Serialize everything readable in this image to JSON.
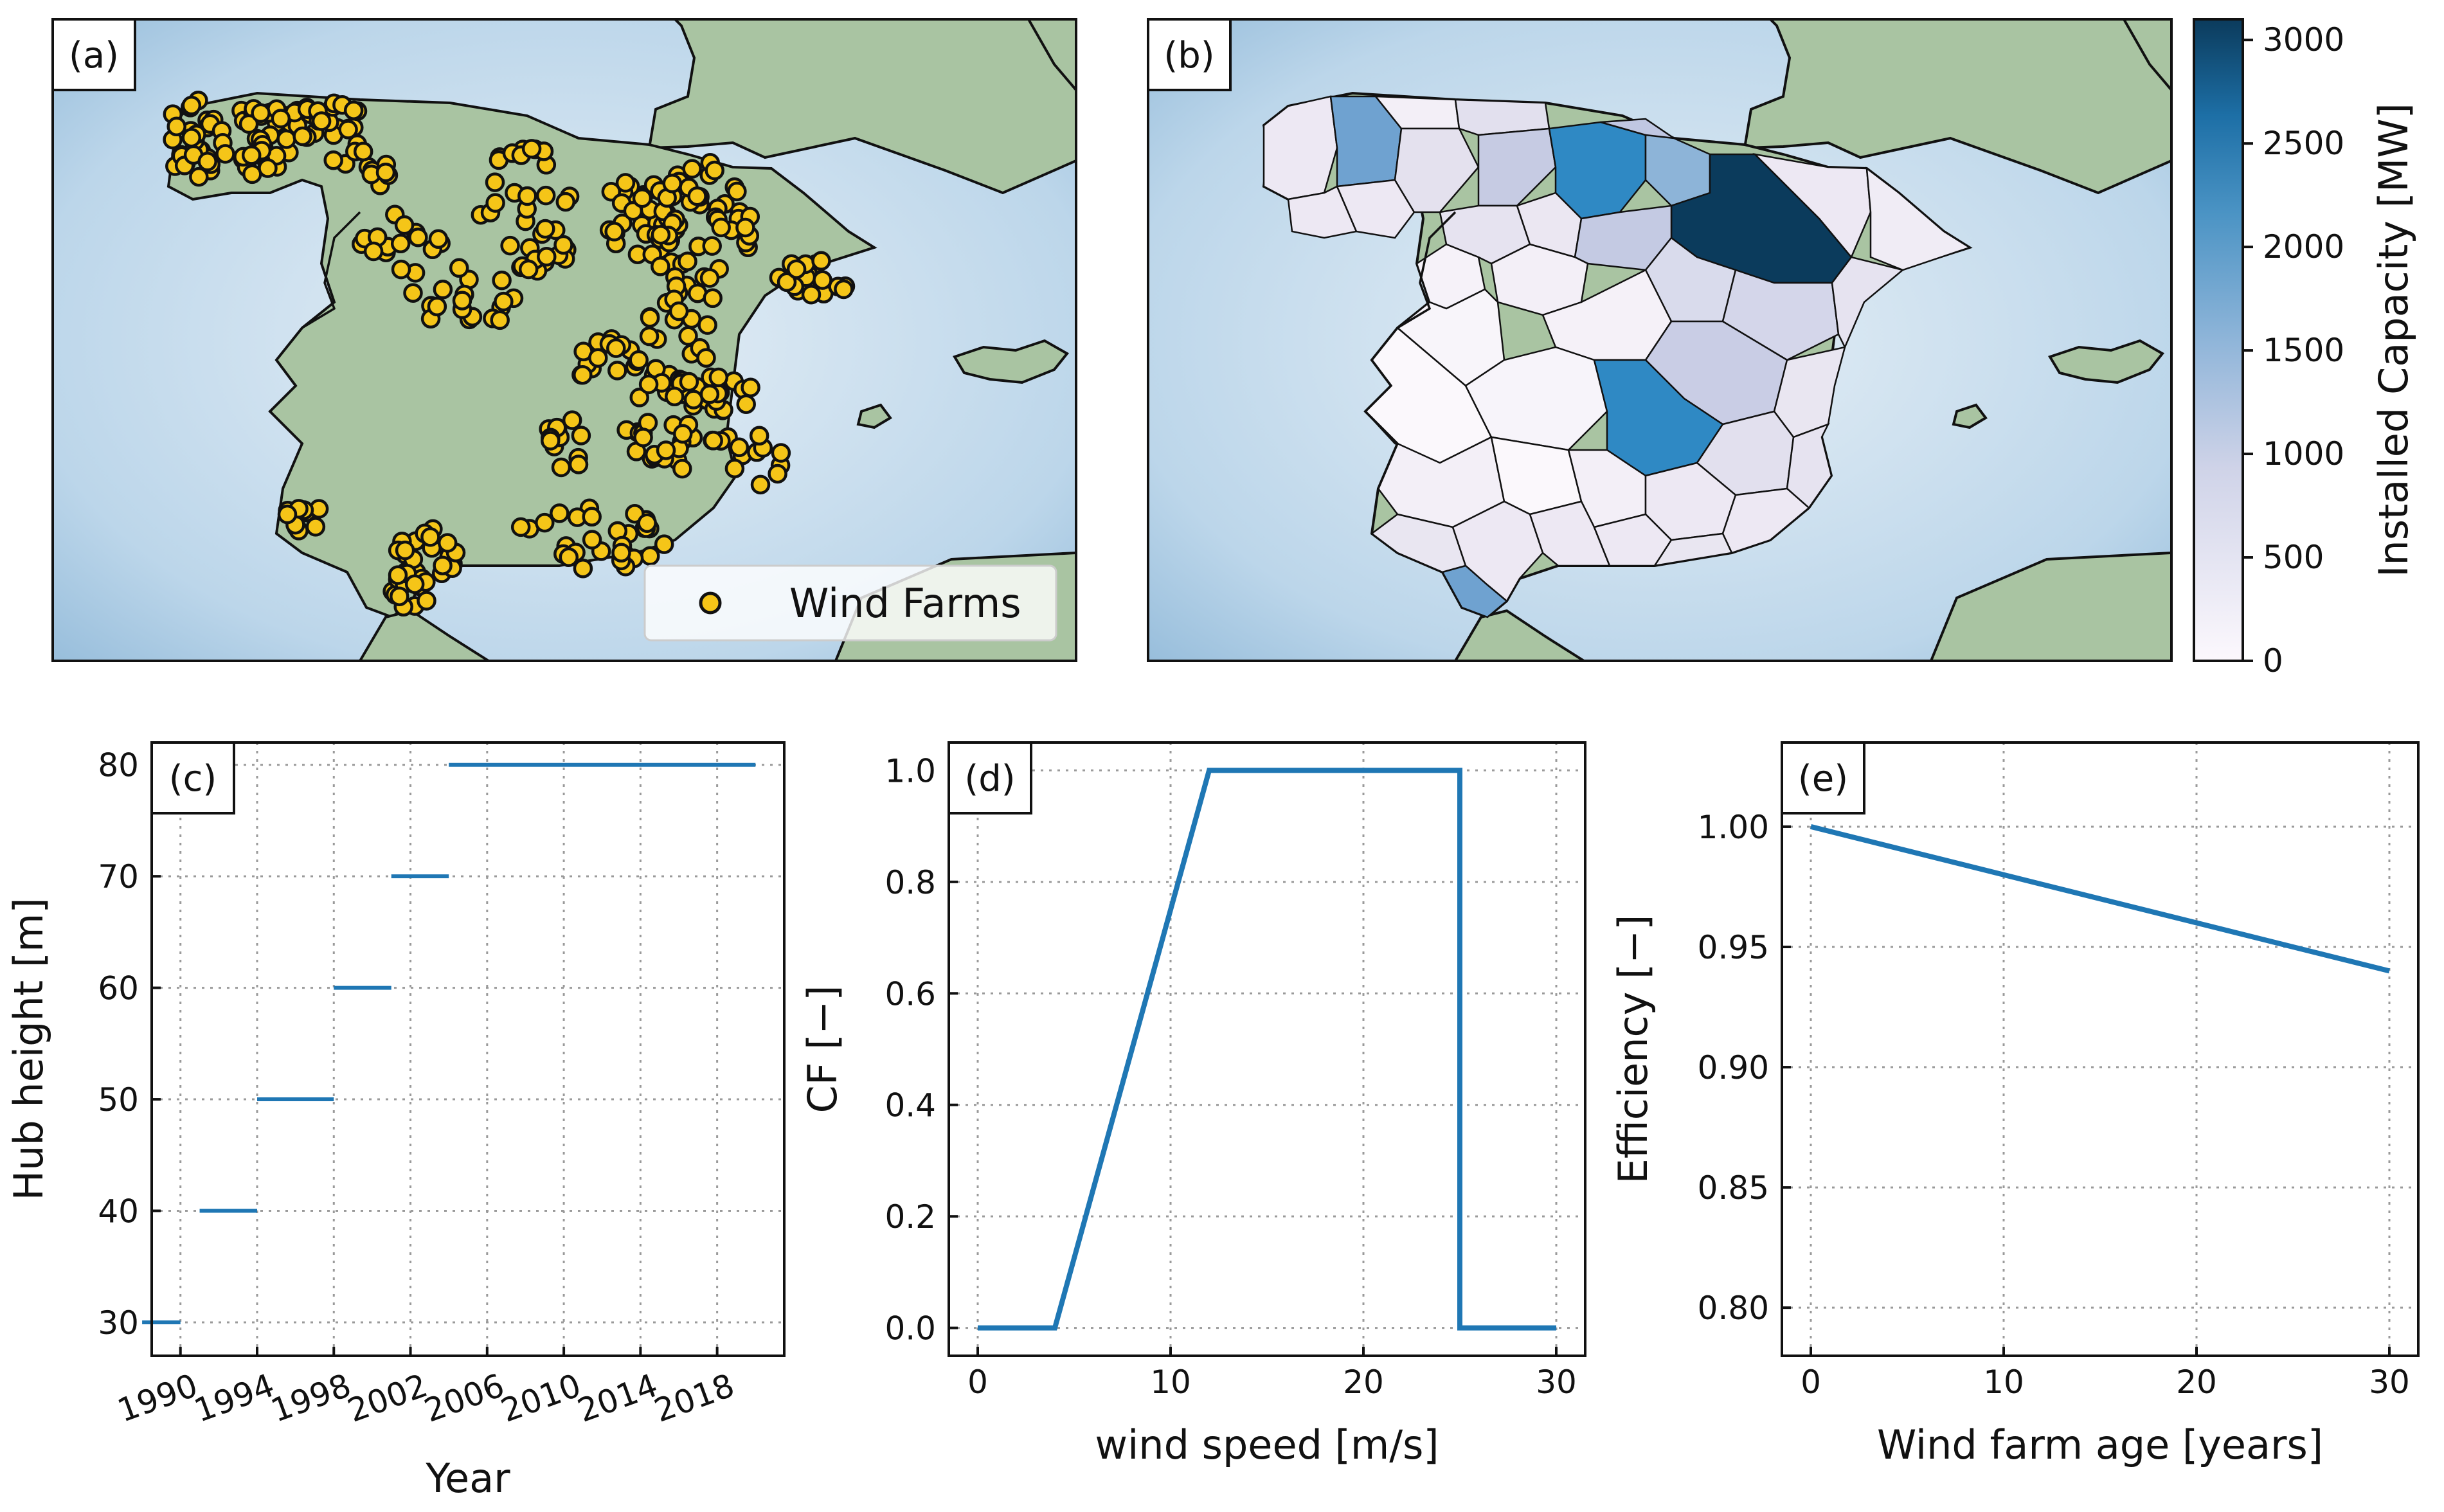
{
  "panels": {
    "a": {
      "label": "(a)",
      "legend": "Wind Farms"
    },
    "b": {
      "label": "(b)"
    },
    "c": {
      "label": "(c)"
    },
    "d": {
      "label": "(d)"
    },
    "e": {
      "label": "(e)"
    }
  },
  "colors": {
    "line": "#1f77b4",
    "marker_fill": "#f5c518",
    "marker_edge": "#111111",
    "sea": "#b9d6ea",
    "land": "#a9c4a2",
    "cmap_low": "#fcf8fd",
    "cmap_mid": "#8fb5d9",
    "cmap_high": "#0b3b5c"
  },
  "chart_data": [
    {
      "panel": "a",
      "type": "scatter",
      "xlabel": "",
      "ylabel": "",
      "legend": [
        "Wind Farms"
      ],
      "legend_position": "bottom-right",
      "grid": false
    },
    {
      "panel": "b",
      "type": "heatmap",
      "colorbar_label": "Installed Capacity [MW]",
      "colorbar_ticks": [
        "0",
        "500",
        "1000",
        "1500",
        "2000",
        "2500",
        "3000"
      ],
      "colorbar_range": [
        0,
        3100
      ],
      "grid": false
    },
    {
      "panel": "c",
      "type": "line",
      "xlabel": "Year",
      "ylabel": "Hub height [m]",
      "xticks": [
        "1990",
        "1994",
        "1998",
        "2002",
        "2006",
        "2010",
        "2014",
        "2018"
      ],
      "yticks": [
        "30",
        "40",
        "50",
        "60",
        "70",
        "80"
      ],
      "xlim": [
        1988.5,
        2021.5
      ],
      "ylim": [
        27,
        82
      ],
      "grid": true,
      "segments": [
        {
          "x": [
            1988,
            1990
          ],
          "y": 30
        },
        {
          "x": [
            1991,
            1994
          ],
          "y": 40
        },
        {
          "x": [
            1994,
            1998
          ],
          "y": 50
        },
        {
          "x": [
            1998,
            2001
          ],
          "y": 60
        },
        {
          "x": [
            2001,
            2004
          ],
          "y": 70
        },
        {
          "x": [
            2004,
            2020
          ],
          "y": 80
        }
      ]
    },
    {
      "panel": "d",
      "type": "line",
      "xlabel": "wind speed [m/s]",
      "ylabel": "CF [−]",
      "xticks": [
        "0",
        "10",
        "20",
        "30"
      ],
      "yticks": [
        "0.0",
        "0.2",
        "0.4",
        "0.6",
        "0.8",
        "1.0"
      ],
      "xlim": [
        -1.5,
        31.5
      ],
      "ylim": [
        -0.05,
        1.05
      ],
      "grid": true,
      "series": [
        {
          "x": [
            0,
            4,
            12,
            25,
            25,
            30
          ],
          "y": [
            0,
            0,
            1,
            1,
            0,
            0
          ]
        }
      ]
    },
    {
      "panel": "e",
      "type": "line",
      "xlabel": "Wind farm age [years]",
      "ylabel": "Efficiency [−]",
      "xticks": [
        "0",
        "10",
        "20",
        "30"
      ],
      "yticks": [
        "0.80",
        "0.85",
        "0.90",
        "0.95",
        "1.00"
      ],
      "xlim": [
        -1.5,
        31.5
      ],
      "ylim": [
        0.78,
        1.035
      ],
      "grid": true,
      "series": [
        {
          "x": [
            0,
            30
          ],
          "y": [
            1.0,
            0.94
          ]
        }
      ]
    }
  ]
}
